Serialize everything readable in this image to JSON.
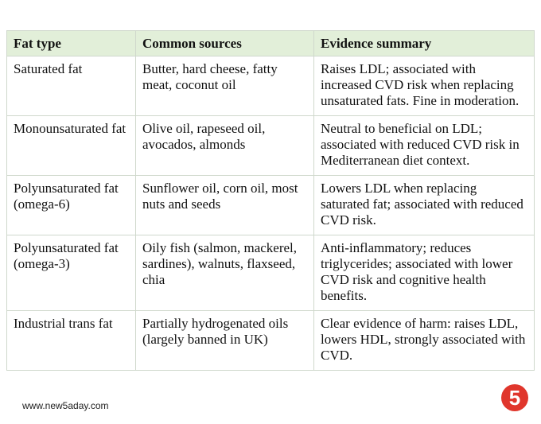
{
  "table": {
    "header": [
      "Fat type",
      "Common sources",
      "Evidence summary"
    ],
    "rows": [
      [
        "Saturated fat",
        "Butter, hard cheese, fatty meat, coconut oil",
        "Raises LDL; associated with increased CVD risk when replacing unsaturated fats. Fine in moderation."
      ],
      [
        "Monounsaturated fat",
        "Olive oil, rapeseed oil, avocados, almonds",
        "Neutral to beneficial on LDL; associated with reduced CVD risk in Mediterranean diet context."
      ],
      [
        "Polyunsaturated fat (omega-6)",
        "Sunflower oil, corn oil, most nuts and seeds",
        "Lowers LDL when replacing saturated fat; associated with reduced CVD risk."
      ],
      [
        "Polyunsaturated fat (omega-3)",
        "Oily fish (salmon, mackerel, sardines), walnuts, flaxseed, chia",
        "Anti-inflammatory; reduces triglycerides; associated with lower CVD risk and cognitive health benefits."
      ],
      [
        "Industrial trans fat",
        "Partially hydrogenated oils (largely banned in UK)",
        "Clear evidence of harm: raises LDL, lowers HDL, strongly associated with CVD."
      ]
    ]
  },
  "footer": {
    "website": "www.new5aday.com",
    "logo": "5"
  }
}
